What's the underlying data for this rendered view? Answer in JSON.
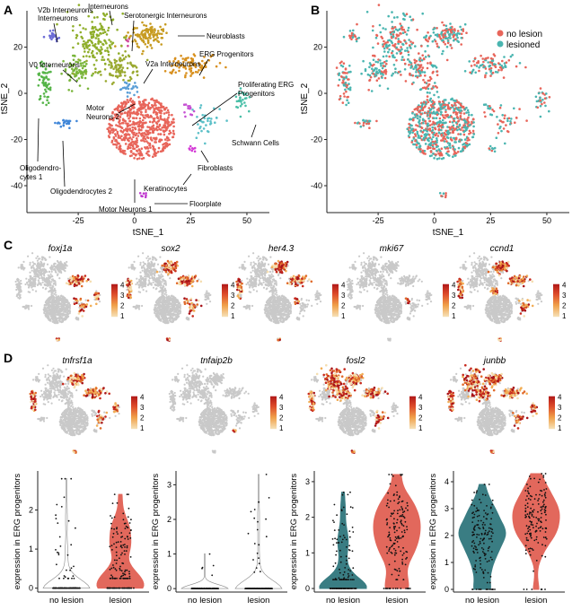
{
  "panels": {
    "A": "A",
    "B": "B",
    "C": "C",
    "D": "D"
  },
  "colors": {
    "no_lesion": "#e8655a",
    "lesioned": "#4ab5b0",
    "violin_no_lesion": "#3a7d83",
    "violin_lesion": "#e2685c",
    "feature_low": "#f5deb0",
    "feature_high": "#b81a1a",
    "background_cells": "#c9c9c9"
  },
  "chart_data": [
    {
      "id": "A",
      "type": "scatter",
      "xlabel": "tSNE_1",
      "ylabel": "tSNE_2",
      "xticks": [
        -25,
        0,
        25,
        50
      ],
      "yticks": [
        20,
        0,
        -20,
        -40
      ],
      "xlim": [
        -47,
        60
      ],
      "ylim": [
        -47,
        35
      ],
      "cluster_labels": [
        "V2b Interneurons",
        "Interneurons",
        "Serotonergic Interneurons",
        "Neuroblasts",
        "V0 Interneurons",
        "ERG Progenitors",
        "V2a Interneurons",
        "Proliferating ERG",
        "Progenitors",
        "Motor",
        "Neurons 2",
        "Schwann Cells",
        "Oligodendro-",
        "cytes 1",
        "Fibroblasts",
        "Oligodendrocytes 2",
        "Keratinocytes",
        "Floorplate",
        "Motor Neurons 1"
      ],
      "clusters": [
        {
          "name": "Interneurons",
          "color": "#8fae2a",
          "cx": -17,
          "cy": 23,
          "sx": 5,
          "sy": 6,
          "n": 160
        },
        {
          "name": "V2b Interneurons",
          "color": "#6c6cd6",
          "cx": -36,
          "cy": 25,
          "sx": 1.8,
          "sy": 1,
          "n": 18
        },
        {
          "name": "Serotonergic Interneurons",
          "color": "#d0469a",
          "cx": -3,
          "cy": 22,
          "sx": 0.6,
          "sy": 0.6,
          "n": 4
        },
        {
          "name": "Neuroblasts",
          "color": "#c79b21",
          "cx": 5,
          "cy": 25,
          "sx": 4,
          "sy": 3,
          "n": 110
        },
        {
          "name": "V0 Interneurons",
          "color": "#79b53a",
          "cx": -26,
          "cy": 10,
          "sx": 3,
          "sy": 3,
          "n": 70
        },
        {
          "name": "V2a Interneurons",
          "color": "#9aa930",
          "cx": -7,
          "cy": 11,
          "sx": 5,
          "sy": 3,
          "n": 90
        },
        {
          "name": "ERG Progenitors",
          "color": "#d8901e",
          "cx": 24,
          "cy": 12,
          "sx": 6,
          "sy": 2.5,
          "n": 90
        },
        {
          "name": "Motor Neurons 2",
          "color": "#5a9ed6",
          "cx": -3,
          "cy": 3,
          "sx": 2,
          "sy": 1.5,
          "n": 25
        },
        {
          "name": "Proliferating ERG Progenitors",
          "color": "#c651d3",
          "cx": 24,
          "cy": -6,
          "sx": 1.2,
          "sy": 1.2,
          "n": 12
        },
        {
          "name": "Schwann Cells",
          "color": "#49bfa7",
          "cx": 48,
          "cy": -3,
          "sx": 2.5,
          "sy": 2.5,
          "n": 30
        },
        {
          "name": "Oligodendrocytes 1",
          "color": "#55b448",
          "cx": -40,
          "cy": 5,
          "sx": 1.5,
          "sy": 5,
          "n": 60
        },
        {
          "name": "Oligodendrocytes 2",
          "color": "#3f86d8",
          "cx": -31,
          "cy": -13,
          "sx": 2.5,
          "sy": 1,
          "n": 22
        },
        {
          "name": "Fibroblasts",
          "color": "#5cc0c8",
          "cx": 32,
          "cy": -12,
          "sx": 4,
          "sy": 3,
          "n": 35
        },
        {
          "name": "Keratinocytes",
          "color": "#d43bd6",
          "cx": 26,
          "cy": -24,
          "sx": 1,
          "sy": 1,
          "n": 8
        },
        {
          "name": "Motor Neurons 1",
          "color": "#e8655a",
          "cx": 3,
          "cy": -15,
          "sx": 10,
          "sy": 9,
          "n": 620
        },
        {
          "name": "Floorplate",
          "color": "#c03ad0",
          "cx": 4,
          "cy": -44,
          "sx": 0.8,
          "sy": 0.6,
          "n": 8
        }
      ]
    },
    {
      "id": "B",
      "type": "scatter",
      "xlabel": "tSNE_1",
      "ylabel": "tSNE_2",
      "xticks": [
        -25,
        0,
        25,
        50
      ],
      "yticks": [
        20,
        0,
        -20,
        -40
      ],
      "xlim": [
        -47,
        60
      ],
      "ylim": [
        -47,
        35
      ],
      "legend": {
        "position": "top-right",
        "entries": [
          "no lesion",
          "lesioned"
        ]
      }
    },
    {
      "id": "C",
      "type": "scatter",
      "features": [
        "foxj1a",
        "sox2",
        "her4.3",
        "mki67",
        "ccnd1"
      ],
      "colorbar_ticks": [
        "4",
        "3",
        "2",
        "1"
      ],
      "expression_fraction": [
        0.18,
        0.22,
        0.22,
        0.02,
        0.2
      ]
    },
    {
      "id": "D",
      "type": "scatter",
      "features": [
        "tnfrsf1a",
        "tnfaip2b",
        "fosl2",
        "junbb"
      ],
      "colorbar_ticks": [
        "4",
        "3",
        "2",
        "1"
      ],
      "expression_fraction": [
        0.2,
        0.02,
        0.3,
        0.3
      ]
    },
    {
      "id": "D-violins",
      "type": "violin",
      "ylabel": "expression in ERG progenitors",
      "categories": [
        "no lesion",
        "lesion"
      ],
      "panels": [
        {
          "feature": "tnfrsf1a",
          "ylim": [
            -0.1,
            3.0
          ],
          "yticks": [
            0,
            1,
            2
          ],
          "no_lesion": {
            "max": 2.8,
            "frac_expressing": 0.25,
            "median_expressing": 0.7
          },
          "lesion": {
            "max": 2.4,
            "frac_expressing": 0.7,
            "median_expressing": 0.8
          }
        },
        {
          "feature": "tnfaip2b",
          "ylim": [
            -0.1,
            3.4
          ],
          "yticks": [
            0,
            1,
            2,
            3
          ],
          "no_lesion": {
            "max": 1.0,
            "frac_expressing": 0.02,
            "median_expressing": 0.6
          },
          "lesion": {
            "max": 3.3,
            "frac_expressing": 0.12,
            "median_expressing": 1.5
          }
        },
        {
          "feature": "fosl2",
          "ylim": [
            -0.1,
            3.3
          ],
          "yticks": [
            0,
            1,
            2,
            3
          ],
          "no_lesion": {
            "max": 2.7,
            "frac_expressing": 0.55,
            "median_expressing": 0.8
          },
          "lesion": {
            "max": 3.2,
            "frac_expressing": 0.85,
            "median_expressing": 1.6
          }
        },
        {
          "feature": "junbb",
          "ylim": [
            -0.1,
            4.4
          ],
          "yticks": [
            0,
            1,
            2,
            3,
            4
          ],
          "no_lesion": {
            "max": 3.9,
            "frac_expressing": 0.9,
            "median_expressing": 2.0
          },
          "lesion": {
            "max": 4.3,
            "frac_expressing": 0.95,
            "median_expressing": 2.7
          }
        }
      ]
    }
  ]
}
